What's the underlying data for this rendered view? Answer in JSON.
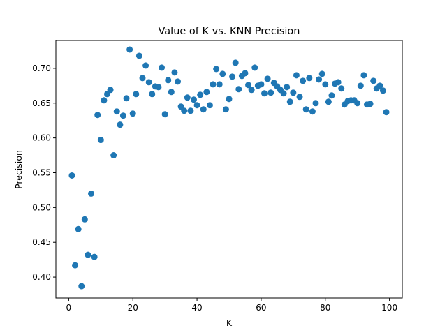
{
  "chart_data": {
    "type": "scatter",
    "title": "Value of K vs. KNN Precision",
    "xlabel": "K",
    "ylabel": "Precision",
    "xlim": [
      -4,
      104
    ],
    "ylim": [
      0.37,
      0.74
    ],
    "xticks": [
      0,
      20,
      40,
      60,
      80,
      100
    ],
    "yticks": [
      0.4,
      0.45,
      0.5,
      0.55,
      0.6,
      0.65,
      0.7
    ],
    "ytick_labels": [
      "0.40",
      "0.45",
      "0.50",
      "0.55",
      "0.60",
      "0.65",
      "0.70"
    ],
    "grid": false,
    "marker_color": "#1f77b4",
    "series": [
      {
        "x": [
          1,
          2,
          3,
          4,
          5,
          6,
          7,
          8,
          9,
          10,
          11,
          12,
          13,
          14,
          15,
          16,
          17,
          18,
          19,
          20,
          21,
          22,
          23,
          24,
          25,
          26,
          27,
          28,
          29,
          30,
          31,
          32,
          33,
          34,
          35,
          36,
          37,
          38,
          39,
          40,
          41,
          42,
          43,
          44,
          45,
          46,
          47,
          48,
          49,
          50,
          51,
          52,
          53,
          54,
          55,
          56,
          57,
          58,
          59,
          60,
          61,
          62,
          63,
          64,
          65,
          66,
          67,
          68,
          69,
          70,
          71,
          72,
          73,
          74,
          75,
          76,
          77,
          78,
          79,
          80,
          81,
          82,
          83,
          84,
          85,
          86,
          87,
          88,
          89,
          90,
          91,
          92,
          93,
          94,
          95,
          96,
          97,
          98,
          99
        ],
        "y": [
          0.546,
          0.417,
          0.469,
          0.387,
          0.483,
          0.432,
          0.52,
          0.429,
          0.633,
          0.597,
          0.654,
          0.663,
          0.669,
          0.575,
          0.638,
          0.619,
          0.632,
          0.657,
          0.727,
          0.635,
          0.663,
          0.718,
          0.686,
          0.704,
          0.68,
          0.663,
          0.674,
          0.673,
          0.701,
          0.634,
          0.683,
          0.666,
          0.694,
          0.681,
          0.645,
          0.639,
          0.658,
          0.639,
          0.655,
          0.647,
          0.662,
          0.641,
          0.666,
          0.647,
          0.677,
          0.699,
          0.677,
          0.692,
          0.641,
          0.656,
          0.688,
          0.708,
          0.67,
          0.689,
          0.693,
          0.676,
          0.669,
          0.701,
          0.675,
          0.677,
          0.664,
          0.685,
          0.665,
          0.679,
          0.674,
          0.669,
          0.664,
          0.673,
          0.652,
          0.665,
          0.69,
          0.659,
          0.682,
          0.641,
          0.686,
          0.638,
          0.65,
          0.684,
          0.692,
          0.677,
          0.652,
          0.661,
          0.678,
          0.68,
          0.671,
          0.648,
          0.653,
          0.654,
          0.654,
          0.65,
          0.675,
          0.69,
          0.648,
          0.649,
          0.682,
          0.671,
          0.675,
          0.668,
          0.637
        ]
      }
    ]
  }
}
